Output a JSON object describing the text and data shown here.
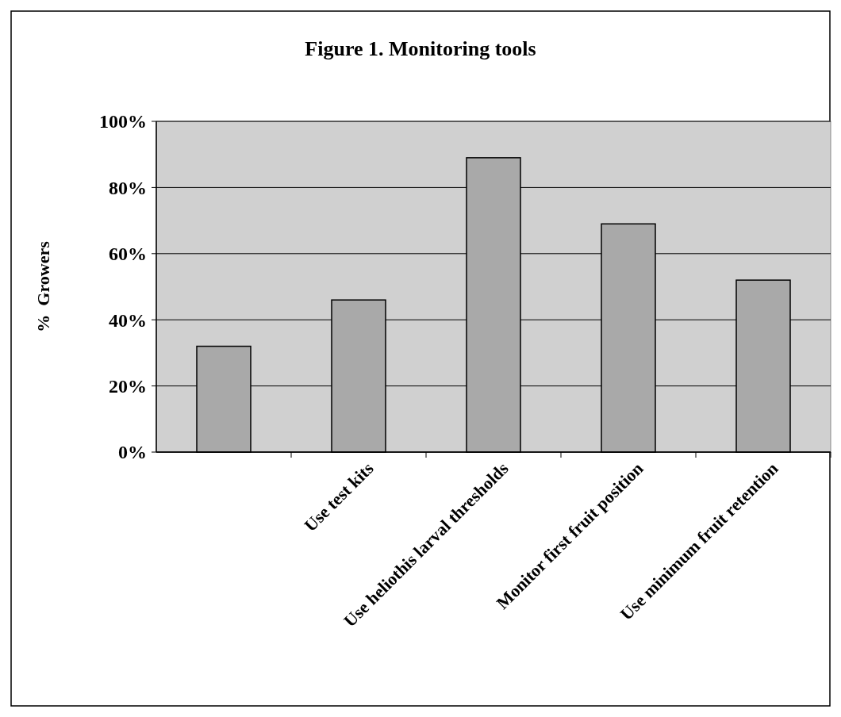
{
  "chart_data": {
    "type": "bar",
    "title": "Figure 1.  Monitoring tools",
    "ylabel": "%  Growers",
    "categories": [
      null,
      "Use test kits",
      "Use heliothis larval thresholds",
      "Monitor first fruit position",
      "Use minimum fruit retention"
    ],
    "values": [
      32,
      46,
      89,
      69,
      52
    ],
    "color": "#a9a9a9",
    "ylim": [
      0,
      100
    ],
    "yticks": [
      {
        "value": 0,
        "label": "0%"
      },
      {
        "value": 20,
        "label": "20%"
      },
      {
        "value": 40,
        "label": "40%"
      },
      {
        "value": 60,
        "label": "60%"
      },
      {
        "value": 80,
        "label": "80%"
      },
      {
        "value": 100,
        "label": "100%"
      }
    ],
    "grid": "y"
  }
}
